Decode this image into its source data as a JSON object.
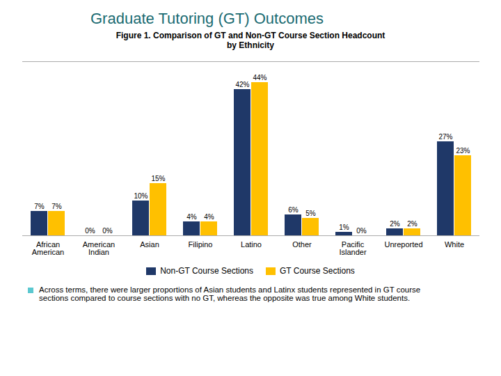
{
  "chart_data": {
    "type": "bar",
    "title": "Graduate Tutoring (GT) Outcomes",
    "subtitle": "Figure 1. Comparison of GT and Non-GT Course Section Headcount\nby Ethnicity",
    "categories": [
      "African\nAmerican",
      "American\nIndian",
      "Asian",
      "Filipino",
      "Latino",
      "Other",
      "Pacific\nIslander",
      "Unreported",
      "White"
    ],
    "series": [
      {
        "name": "Non-GT Course Sections",
        "color": "#1F3868",
        "values": [
          7,
          0,
          10,
          4,
          42,
          6,
          1,
          2,
          27
        ],
        "value_labels": [
          "7%",
          "0%",
          "10%",
          "4%",
          "42%",
          "6%",
          "1%",
          "2%",
          "27%"
        ]
      },
      {
        "name": "GT Course Sections",
        "color": "#FFC000",
        "values": [
          7,
          0,
          15,
          4,
          44,
          5,
          0,
          2,
          23
        ],
        "value_labels": [
          "7%",
          "0%",
          "15%",
          "4%",
          "44%",
          "5%",
          "0%",
          "2%",
          "23%"
        ]
      }
    ],
    "ylim": [
      0,
      50
    ],
    "grid": false,
    "legend": "bottom",
    "data_labels": true,
    "tick_labels": "x",
    "annotation": "Across terms, there were larger proportions of Asian students and Latinx students represented in GT course\nsections compared to course sections with no GT, whereas the opposite was true among White students."
  }
}
